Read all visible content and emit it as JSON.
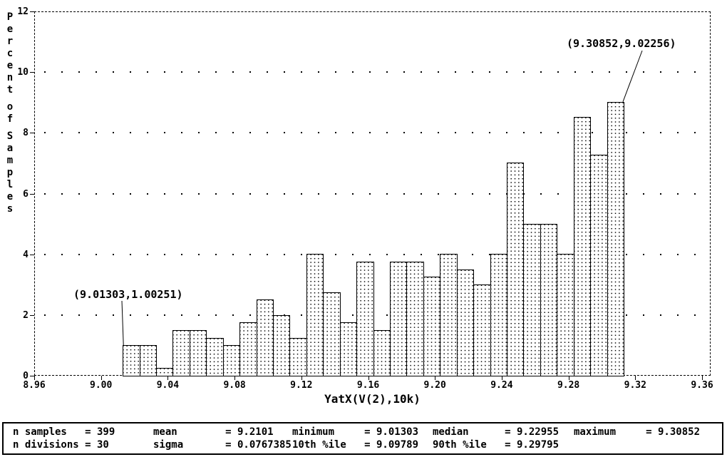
{
  "window": {
    "background": "#ffffff",
    "foreground": "#000000"
  },
  "chart_data": {
    "type": "bar",
    "title": "",
    "xlabel": "YatX(V(2),10k)",
    "ylabel": "Percent of Samples",
    "xlim": [
      8.96,
      9.36
    ],
    "ylim": [
      0,
      12
    ],
    "grid": "dotted-horizontal",
    "x_tick_labels": [
      "8.96",
      "9.00",
      "9.04",
      "9.08",
      "9.12",
      "9.16",
      "9.20",
      "9.24",
      "9.28",
      "9.32",
      "9.36"
    ],
    "y_tick_labels": [
      "12",
      "10",
      "8",
      "6",
      "4",
      "2",
      "0"
    ],
    "y_gridlines": [
      10,
      8,
      6,
      4,
      2
    ],
    "bin_start": 9.01303,
    "bin_width": 0.01,
    "n_bins": 30,
    "values_percent": [
      1.00251,
      1.00251,
      0.25063,
      1.50376,
      1.50376,
      1.25313,
      1.00251,
      1.75439,
      2.50627,
      2.00501,
      1.25313,
      4.01003,
      2.75689,
      1.75439,
      3.7594,
      1.50376,
      3.7594,
      3.7594,
      3.25815,
      4.01003,
      3.50877,
      3.00752,
      4.01003,
      7.01754,
      5.01253,
      5.01253,
      4.01003,
      8.5213,
      7.26817,
      9.02256
    ],
    "annotations": [
      {
        "id": "min-point",
        "text": "(9.01303,1.00251)",
        "attach_bar": 0,
        "attach_corner": "top-left"
      },
      {
        "id": "max-point",
        "text": "(9.30852,9.02256)",
        "attach_bar": 29,
        "attach_corner": "top-right"
      }
    ]
  },
  "stats": {
    "columns": [
      {
        "rows": [
          {
            "label": "n samples",
            "value": "399"
          },
          {
            "label": "n divisions",
            "value": "30"
          }
        ]
      },
      {
        "rows": [
          {
            "label": "mean",
            "value": "9.2101"
          },
          {
            "label": "sigma",
            "value": "0.0767385"
          }
        ]
      },
      {
        "rows": [
          {
            "label": "minimum",
            "value": "9.01303"
          },
          {
            "label": "10th %ile",
            "value": "9.09789"
          }
        ]
      },
      {
        "rows": [
          {
            "label": "median",
            "value": "9.22955"
          },
          {
            "label": "90th %ile",
            "value": "9.29795"
          }
        ]
      },
      {
        "rows": [
          {
            "label": "maximum",
            "value": "9.30852"
          }
        ]
      }
    ]
  }
}
